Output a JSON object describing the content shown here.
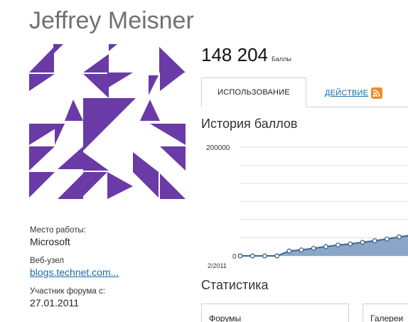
{
  "profile": {
    "name": "Jeffrey Meisner",
    "avatar_color": "#6a3aa6"
  },
  "info": {
    "workplace_label": "Место работы:",
    "workplace_value": "Microsoft",
    "website_label": "Веб-узел",
    "website_value": "blogs.technet.com...",
    "member_since_label": "Участник форума с:",
    "member_since_value": "27.01.2011"
  },
  "points": {
    "value": "148 204",
    "unit": "Баллы"
  },
  "tabs": {
    "usage": "ИСПОЛЬЗОВАНИЕ",
    "activity": "ДЕЙСТВИЕ"
  },
  "history": {
    "title": "История баллов"
  },
  "chart_data": {
    "type": "area",
    "y_tick_top": "200000",
    "y_tick_bottom": "0",
    "x_tick_first": "2/2011",
    "ylim": [
      0,
      200000
    ],
    "values": [
      0,
      0,
      0,
      0,
      9000,
      11000,
      14000,
      17000,
      20000,
      22000,
      25000,
      28000,
      31000,
      35000,
      38000
    ],
    "fill_color": "#8aa6c8",
    "line_color": "#3d6690",
    "grid": true
  },
  "stats": {
    "title": "Статистика",
    "forums_label": "Форумы",
    "galleries_label": "Галереи"
  }
}
